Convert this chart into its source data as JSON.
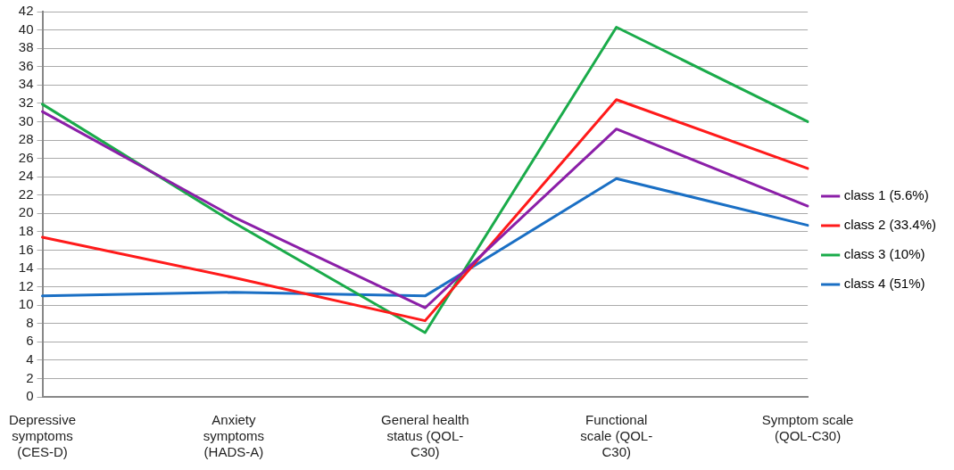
{
  "chart_data": {
    "type": "line",
    "categories": [
      "Depressive symptoms (CES-D)",
      "Anxiety symptoms (HADS-A)",
      "General health status (QOL-C30)",
      "Functional scale (QOL-C30)",
      "Symptom scale (QOL-C30)"
    ],
    "series": [
      {
        "name": "class 1 (5.6%)",
        "color": "#8b1fa8",
        "values": [
          31.1,
          19.6,
          9.7,
          29.2,
          20.8
        ]
      },
      {
        "name": "class 2 (33.4%)",
        "color": "#ff1a1a",
        "values": [
          17.4,
          13.0,
          8.3,
          32.4,
          24.9
        ]
      },
      {
        "name": "class 3 (10%)",
        "color": "#1aab4a",
        "values": [
          31.9,
          19.0,
          7.0,
          40.3,
          30.0
        ]
      },
      {
        "name": "class 4 (51%)",
        "color": "#1a6fc4",
        "values": [
          11.0,
          11.4,
          11.0,
          23.8,
          18.7
        ]
      }
    ],
    "ylim": [
      0,
      42
    ],
    "yticks": [
      0,
      2,
      4,
      6,
      8,
      10,
      12,
      14,
      16,
      18,
      20,
      22,
      24,
      26,
      28,
      30,
      32,
      34,
      36,
      38,
      40,
      42
    ],
    "grid": "y",
    "legend": "right",
    "marker": "none",
    "line_style": "solid"
  }
}
